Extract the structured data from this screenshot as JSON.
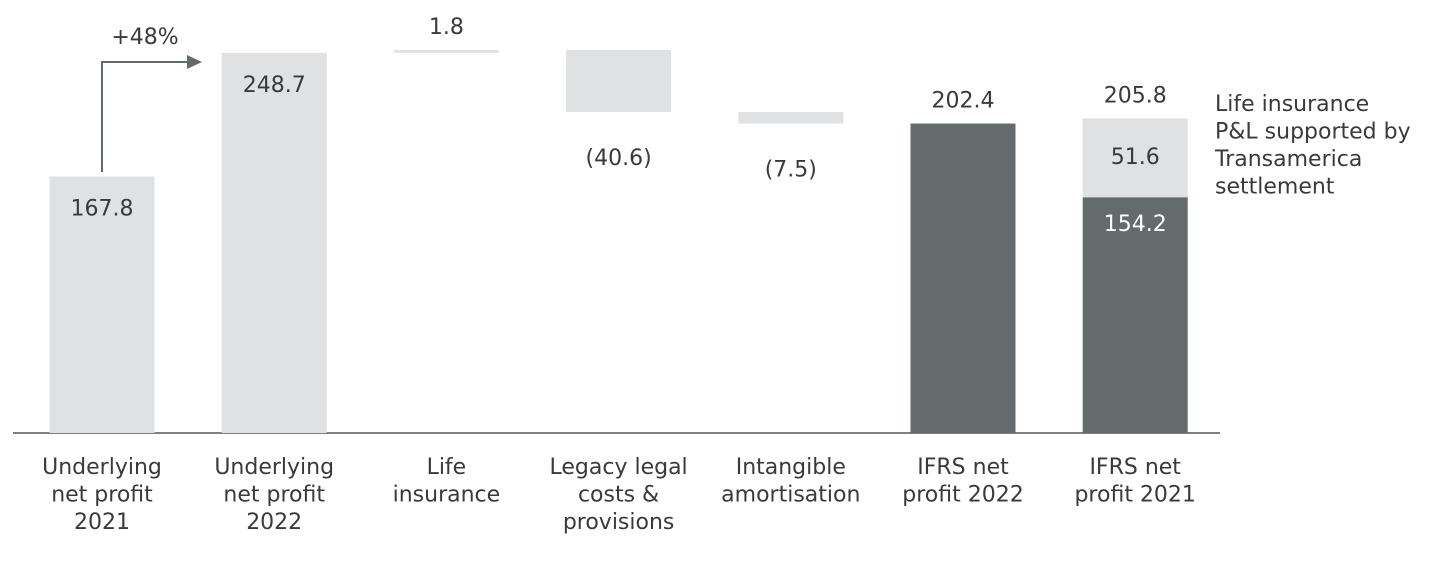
{
  "chart_data": {
    "type": "waterfall",
    "categories": [
      "Underlying\nnet profit\n2021",
      "Underlying\nnet profit\n2022",
      "Life\ninsurance",
      "Legacy legal\ncosts &\nprovisions",
      "Intangible\namortisation",
      "IFRS net\nprofit 2022",
      "IFRS net\nprofit 2021"
    ],
    "values": [
      167.8,
      248.7,
      1.8,
      -40.6,
      -7.5,
      202.4,
      null
    ],
    "value_labels": [
      "167.8",
      "248.7",
      "1.8",
      "(40.6)",
      "(7.5)",
      "202.4",
      null
    ],
    "bar_kinds": [
      "total",
      "total",
      "delta",
      "delta",
      "delta",
      "total",
      "stack"
    ],
    "label_position": [
      "inside",
      "inside",
      "above",
      "below",
      "below",
      "above",
      null
    ],
    "colors": [
      "#e0e1e2",
      "#e0e1e2",
      "#e0e1e2",
      "#e0e1e2",
      "#e0e1e2",
      "#646b6d",
      null
    ],
    "stacked": {
      "values": [
        154.2,
        51.6
      ],
      "colors": [
        "#646b6d",
        "#e0e1e2"
      ],
      "total": 205.8,
      "note": "Life insurance\nP&L supported by\nTransamerica\nsettlement"
    },
    "annotation": "+48%"
  }
}
